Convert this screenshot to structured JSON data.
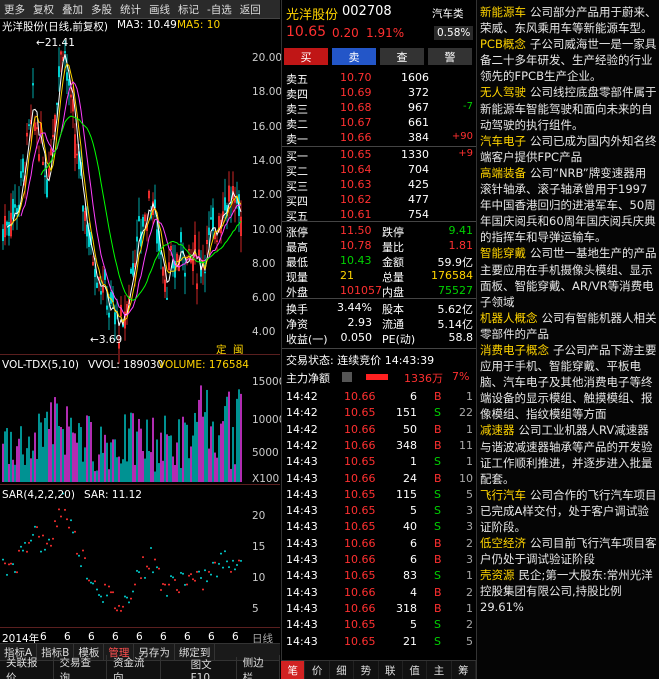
{
  "toolbar": {
    "items": [
      "更多",
      "复权",
      "叠加",
      "多股",
      "统计",
      "画线",
      "标记",
      "-自选",
      "返回"
    ]
  },
  "chart": {
    "title": "光洋股份(日线,前复权)",
    "ma3": "MA3: 10.49",
    "ma5": "MA5: 10",
    "price_axis": [
      "20.00",
      "18.00",
      "16.00",
      "14.00",
      "12.00",
      "10.00",
      "8.00",
      "6.00",
      "4.00"
    ],
    "high_label": "21.41",
    "low_label": "3.69",
    "vol_label": "VOL-TDX(5,10)",
    "vvol": "VVOL: 189030",
    "volume": "VOLUME: 176584",
    "vol_axis": [
      "15000",
      "10000",
      "5000",
      "X100"
    ],
    "sar_label": "SAR(4,2,2,20)",
    "sar_value": "SAR: 11.12",
    "sar_axis": [
      "20",
      "15",
      "10",
      "5"
    ],
    "x_axis": [
      "2014年",
      "6",
      "6",
      "6",
      "6",
      "6",
      "6",
      "6",
      "6",
      "6"
    ],
    "x_unit": "日线",
    "markers": [
      "定",
      "闽"
    ],
    "colors": {
      "up": "#ff3030",
      "down": "#00d0d0",
      "ma3": "#ffffff",
      "ma5": "#ffd400",
      "ma10": "#ff40ff",
      "ma20": "#00ff00"
    }
  },
  "left_tabs1": [
    "指标A",
    "指标B",
    "模板",
    "管理",
    "另存为",
    "绑定到"
  ],
  "left_tabs2": [
    "关联报价",
    "交易查询",
    "资金流向",
    "图文F10",
    "侧边栏"
  ],
  "quote": {
    "name": "光洋股份",
    "code": "002708",
    "sector": "汽车类",
    "sector_pct": "0.58%",
    "price": "10.65",
    "change": "0.20",
    "pct": "1.91%",
    "buttons": [
      "买",
      "卖",
      "查",
      "警"
    ],
    "asks": [
      {
        "label": "卖五",
        "price": "10.70",
        "vol": "1606",
        "chg": ""
      },
      {
        "label": "卖四",
        "price": "10.69",
        "vol": "372",
        "chg": ""
      },
      {
        "label": "卖三",
        "price": "10.68",
        "vol": "967",
        "chg": "-7"
      },
      {
        "label": "卖二",
        "price": "10.67",
        "vol": "661",
        "chg": ""
      },
      {
        "label": "卖一",
        "price": "10.66",
        "vol": "384",
        "chg": "+90"
      }
    ],
    "bids": [
      {
        "label": "买一",
        "price": "10.65",
        "vol": "1330",
        "chg": "+9"
      },
      {
        "label": "买二",
        "price": "10.64",
        "vol": "704",
        "chg": ""
      },
      {
        "label": "买三",
        "price": "10.63",
        "vol": "425",
        "chg": ""
      },
      {
        "label": "买四",
        "price": "10.62",
        "vol": "477",
        "chg": ""
      },
      {
        "label": "买五",
        "price": "10.61",
        "vol": "754",
        "chg": ""
      }
    ],
    "stats": [
      {
        "l1": "涨停",
        "v1": "11.50",
        "c1": "red",
        "l2": "跌停",
        "v2": "9.41",
        "c2": "green"
      },
      {
        "l1": "最高",
        "v1": "10.78",
        "c1": "red",
        "l2": "量比",
        "v2": "1.81",
        "c2": "red"
      },
      {
        "l1": "最低",
        "v1": "10.43",
        "c1": "green",
        "l2": "金额",
        "v2": "59.9亿",
        "c2": "white"
      },
      {
        "l1": "现量",
        "v1": "21",
        "c1": "yellow",
        "l2": "总量",
        "v2": "176584",
        "c2": "yellow"
      },
      {
        "l1": "外盘",
        "v1": "101057",
        "c1": "red",
        "l2": "内盘",
        "v2": "75527",
        "c2": "green"
      }
    ],
    "stats2": [
      {
        "l1": "换手",
        "v1": "3.44%",
        "l2": "股本",
        "v2": "5.62亿"
      },
      {
        "l1": "净资",
        "v1": "2.93",
        "l2": "流通",
        "v2": "5.14亿"
      },
      {
        "l1": "收益(一)",
        "v1": "0.050",
        "l2": "PE(动)",
        "v2": "58.8"
      }
    ],
    "trade_status": "交易状态: 连续竞价 14:43:39",
    "net_label": "主力净额",
    "net_value": "1336万",
    "net_pct": "7%",
    "ticks": [
      {
        "t": "14:42",
        "p": "10.66",
        "v": "6",
        "bs": "B",
        "n": "1"
      },
      {
        "t": "14:42",
        "p": "10.65",
        "v": "151",
        "bs": "S",
        "n": "22"
      },
      {
        "t": "14:42",
        "p": "10.66",
        "v": "50",
        "bs": "B",
        "n": "1"
      },
      {
        "t": "14:42",
        "p": "10.66",
        "v": "348",
        "bs": "B",
        "n": "11"
      },
      {
        "t": "14:43",
        "p": "10.65",
        "v": "1",
        "bs": "S",
        "n": "1"
      },
      {
        "t": "14:43",
        "p": "10.66",
        "v": "24",
        "bs": "B",
        "n": "10"
      },
      {
        "t": "14:43",
        "p": "10.65",
        "v": "115",
        "bs": "S",
        "n": "5"
      },
      {
        "t": "14:43",
        "p": "10.65",
        "v": "5",
        "bs": "S",
        "n": "3"
      },
      {
        "t": "14:43",
        "p": "10.65",
        "v": "40",
        "bs": "S",
        "n": "3"
      },
      {
        "t": "14:43",
        "p": "10.66",
        "v": "6",
        "bs": "B",
        "n": "2"
      },
      {
        "t": "14:43",
        "p": "10.66",
        "v": "6",
        "bs": "B",
        "n": "3"
      },
      {
        "t": "14:43",
        "p": "10.65",
        "v": "83",
        "bs": "S",
        "n": "1"
      },
      {
        "t": "14:43",
        "p": "10.66",
        "v": "4",
        "bs": "B",
        "n": "2"
      },
      {
        "t": "14:43",
        "p": "10.66",
        "v": "318",
        "bs": "B",
        "n": "1"
      },
      {
        "t": "14:43",
        "p": "10.65",
        "v": "5",
        "bs": "S",
        "n": "2"
      },
      {
        "t": "14:43",
        "p": "10.65",
        "v": "21",
        "bs": "S",
        "n": "5"
      }
    ]
  },
  "right_tabs": [
    "笔",
    "价",
    "细",
    "势",
    "联",
    "值",
    "主",
    "筹"
  ],
  "concepts": [
    {
      "tag": "新能源车",
      "text": "公司部分产品用于蔚来、荣威、东风乘用车等新能源车型。"
    },
    {
      "tag": "PCB概念",
      "text": "子公司威海世一是一家具备二十多年研发、生产经验的行业领先的FPCB生产企业。"
    },
    {
      "tag": "无人驾驶",
      "text": "公司线控底盘零部件属于新能源车智能驾驶和面向未来的自动驾驶的执行组件。"
    },
    {
      "tag": "汽车电子",
      "text": "公司已成为国内外知名终端客户提供FPC产品"
    },
    {
      "tag": "高端装备",
      "text": "公司“NRB”牌变速器用滚针轴承、滚子轴承曾用于1997年中国香港回归的进港军车、50周年国庆阅兵和60周年国庆阅兵庆典的指挥车和导弹运输车。"
    },
    {
      "tag": "智能穿戴",
      "text": "公司世一基地生产的产品主要应用在手机摄像头模组、显示面板、智能穿戴、AR/VR等消费电子领域"
    },
    {
      "tag": "机器人概念",
      "text": "公司有智能机器人相关零部件的产品"
    },
    {
      "tag": "消费电子概念",
      "text": "子公司产品下游主要应用于手机、智能穿戴、平板电脑、汽车电子及其他消费电子等终端设备的显示模组、触摸模组、报像模组、指纹模组等方面"
    },
    {
      "tag": "减速器",
      "text": "公司工业机器人RV减速器与谐波减速器轴承等产品的开发验证工作顺利推进，并逐步进入批量配套。"
    },
    {
      "tag": "飞行汽车",
      "text": "公司合作的飞行汽车项目已完成A样交付，处于客户调试验证阶段。"
    },
    {
      "tag": "低空经济",
      "text": "公司目前飞行汽车项目客户仍处于调试验证阶段"
    },
    {
      "tag": "壳资源",
      "text": "民企;第一大股东:常州光洋控股集团有限公司,持股比例29.61%"
    }
  ]
}
